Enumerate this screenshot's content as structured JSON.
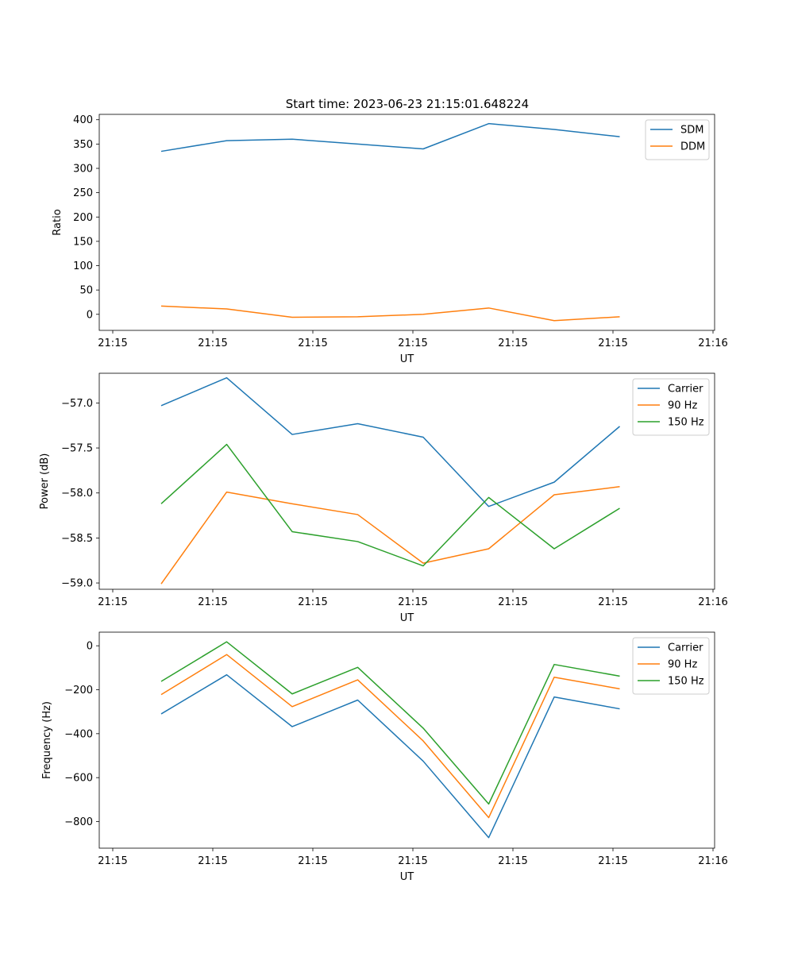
{
  "figure": {
    "title": "Start time: 2023-06-23 21:15:01.648224"
  },
  "colors": {
    "blue": "#1f77b4",
    "orange": "#ff7f0e",
    "green": "#2ca02c"
  },
  "chart_data": [
    {
      "type": "line",
      "title": "Start time: 2023-06-23 21:15:01.648224",
      "xlabel": "UT",
      "ylabel": "Ratio",
      "x_ticks": [
        "21:15",
        "21:15",
        "21:15",
        "21:15",
        "21:15",
        "21:15",
        "21:16"
      ],
      "y_ticks": [
        "0",
        "50",
        "100",
        "150",
        "200",
        "250",
        "300",
        "350",
        "400"
      ],
      "ylim": [
        -33,
        411
      ],
      "legend_position": "top-right",
      "grid": false,
      "series": [
        {
          "name": "SDM",
          "color": "#1f77b4",
          "values": [
            335,
            357,
            360,
            350,
            340,
            392,
            380,
            365
          ]
        },
        {
          "name": "DDM",
          "color": "#ff7f0e",
          "values": [
            17,
            11,
            -6,
            -5,
            0,
            13,
            -13,
            -5
          ]
        }
      ]
    },
    {
      "type": "line",
      "xlabel": "UT",
      "ylabel": "Power (dB)",
      "x_ticks": [
        "21:15",
        "21:15",
        "21:15",
        "21:15",
        "21:15",
        "21:15",
        "21:16"
      ],
      "y_ticks": [
        "−59.0",
        "−58.5",
        "−58.0",
        "−57.5",
        "−57.0"
      ],
      "ylim": [
        -59.07,
        -56.67
      ],
      "legend_position": "top-right",
      "grid": false,
      "series": [
        {
          "name": "Carrier",
          "color": "#1f77b4",
          "values": [
            -57.03,
            -56.72,
            -57.35,
            -57.23,
            -57.38,
            -58.15,
            -57.88,
            -57.26
          ]
        },
        {
          "name": "90 Hz",
          "color": "#ff7f0e",
          "values": [
            -59.01,
            -57.99,
            -58.12,
            -58.24,
            -58.78,
            -58.62,
            -58.02,
            -57.93
          ]
        },
        {
          "name": "150 Hz",
          "color": "#2ca02c",
          "values": [
            -58.12,
            -57.46,
            -58.43,
            -58.54,
            -58.81,
            -58.05,
            -58.62,
            -58.17
          ]
        }
      ]
    },
    {
      "type": "line",
      "xlabel": "UT",
      "ylabel": "Frequency (Hz)",
      "x_ticks": [
        "21:15",
        "21:15",
        "21:15",
        "21:15",
        "21:15",
        "21:15",
        "21:16"
      ],
      "y_ticks": [
        "−800",
        "−600",
        "−400",
        "−200",
        "0"
      ],
      "ylim": [
        -921,
        62
      ],
      "legend_position": "top-right",
      "grid": false,
      "series": [
        {
          "name": "Carrier",
          "color": "#1f77b4",
          "values": [
            -310,
            -132,
            -368,
            -247,
            -525,
            -873,
            -233,
            -287
          ]
        },
        {
          "name": "90 Hz",
          "color": "#ff7f0e",
          "values": [
            -222,
            -40,
            -277,
            -155,
            -433,
            -782,
            -143,
            -196
          ]
        },
        {
          "name": "150 Hz",
          "color": "#2ca02c",
          "values": [
            -162,
            18,
            -219,
            -98,
            -375,
            -720,
            -85,
            -138
          ]
        }
      ]
    }
  ]
}
